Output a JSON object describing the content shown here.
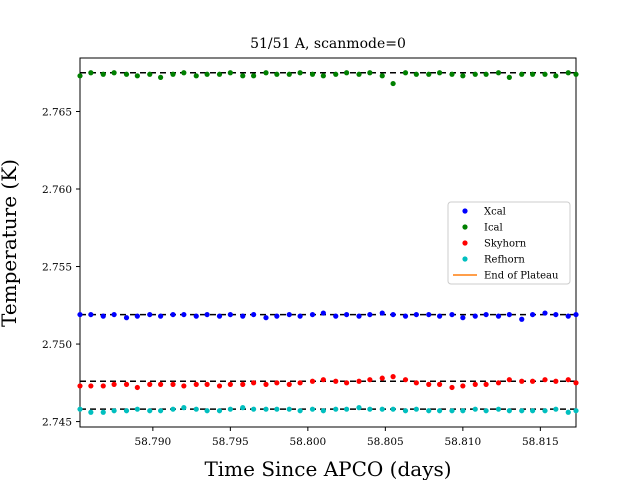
{
  "chart_data": {
    "type": "scatter",
    "title": "51/51 A, scanmode=0",
    "xlabel": "Time Since APCO (days)",
    "ylabel": "Temperature (K)",
    "xlim": [
      58.7853,
      58.8173
    ],
    "ylim": [
      2.74465,
      2.76845
    ],
    "x_ticks": [
      58.79,
      58.795,
      58.8,
      58.805,
      58.81,
      58.815
    ],
    "x_tick_labels": [
      "58.790",
      "58.795",
      "58.800",
      "58.805",
      "58.810",
      "58.815"
    ],
    "y_ticks": [
      2.745,
      2.75,
      2.755,
      2.76,
      2.765
    ],
    "y_tick_labels": [
      "2.745",
      "2.750",
      "2.755",
      "2.760",
      "2.765"
    ],
    "grid": false,
    "legend_position": "center-right",
    "x": [
      58.7853,
      58.786,
      58.7868,
      58.7875,
      58.7883,
      58.789,
      58.7898,
      58.7905,
      58.7913,
      58.792,
      58.7928,
      58.7935,
      58.7943,
      58.795,
      58.7958,
      58.7965,
      58.7973,
      58.798,
      58.7988,
      58.7995,
      58.8003,
      58.801,
      58.8018,
      58.8025,
      58.8033,
      58.804,
      58.8048,
      58.8055,
      58.8063,
      58.807,
      58.8078,
      58.8085,
      58.8093,
      58.81,
      58.8108,
      58.8115,
      58.8123,
      58.813,
      58.8138,
      58.8145,
      58.8153,
      58.816,
      58.8168,
      58.8173
    ],
    "series": [
      {
        "name": "Xcal",
        "color": "#0000ff",
        "plateau": 2.7519,
        "values": [
          2.7519,
          2.7519,
          2.7518,
          2.7519,
          2.7517,
          2.7518,
          2.7519,
          2.7518,
          2.7519,
          2.7519,
          2.7518,
          2.7519,
          2.7518,
          2.7519,
          2.7518,
          2.7519,
          2.7517,
          2.7518,
          2.7519,
          2.7518,
          2.7519,
          2.752,
          2.7518,
          2.7519,
          2.7518,
          2.7519,
          2.752,
          2.7519,
          2.7518,
          2.7519,
          2.7519,
          2.7518,
          2.7519,
          2.7517,
          2.7518,
          2.7519,
          2.7518,
          2.7519,
          2.7516,
          2.7519,
          2.752,
          2.7519,
          2.7518,
          2.7519
        ]
      },
      {
        "name": "Ical",
        "color": "#008000",
        "plateau": 2.7675,
        "values": [
          2.7673,
          2.7675,
          2.7674,
          2.7675,
          2.7674,
          2.7673,
          2.7674,
          2.7672,
          2.7674,
          2.7675,
          2.7673,
          2.7674,
          2.7674,
          2.7675,
          2.7673,
          2.7673,
          2.7675,
          2.7674,
          2.7674,
          2.7675,
          2.7674,
          2.7673,
          2.7674,
          2.7675,
          2.7674,
          2.7675,
          2.7673,
          2.7668,
          2.7675,
          2.7674,
          2.7674,
          2.7675,
          2.7674,
          2.7673,
          2.7674,
          2.7674,
          2.7675,
          2.7672,
          2.7674,
          2.7674,
          2.7674,
          2.7673,
          2.7675,
          2.7674
        ]
      },
      {
        "name": "Skyhorn",
        "color": "#ff0000",
        "plateau": 2.7476,
        "values": [
          2.7473,
          2.7473,
          2.7473,
          2.7474,
          2.7474,
          2.7472,
          2.7474,
          2.7474,
          2.7474,
          2.7473,
          2.7474,
          2.7474,
          2.7473,
          2.7474,
          2.7474,
          2.7475,
          2.7474,
          2.7475,
          2.7474,
          2.7475,
          2.7476,
          2.7477,
          2.7476,
          2.7475,
          2.7476,
          2.7477,
          2.7478,
          2.7479,
          2.7477,
          2.7475,
          2.7474,
          2.7474,
          2.7472,
          2.7473,
          2.7474,
          2.7474,
          2.7475,
          2.7477,
          2.7476,
          2.7476,
          2.7477,
          2.7476,
          2.7477,
          2.7475
        ]
      },
      {
        "name": "Refhorn",
        "color": "#00bfbf",
        "plateau": 2.7458,
        "values": [
          2.7458,
          2.7456,
          2.7456,
          2.7457,
          2.7457,
          2.7458,
          2.7457,
          2.7457,
          2.7458,
          2.7459,
          2.7458,
          2.7457,
          2.7457,
          2.7458,
          2.7459,
          2.7458,
          2.7458,
          2.7458,
          2.7458,
          2.7457,
          2.7458,
          2.7457,
          2.7458,
          2.7458,
          2.7459,
          2.7458,
          2.7458,
          2.7458,
          2.7457,
          2.7458,
          2.7457,
          2.7457,
          2.7457,
          2.7457,
          2.7458,
          2.7457,
          2.7458,
          2.7457,
          2.7457,
          2.7457,
          2.7457,
          2.7458,
          2.7456,
          2.7457
        ]
      }
    ],
    "legend": [
      {
        "label": "Xcal",
        "kind": "marker",
        "color": "#0000ff"
      },
      {
        "label": "Ical",
        "kind": "marker",
        "color": "#008000"
      },
      {
        "label": "Skyhorn",
        "kind": "marker",
        "color": "#ff0000"
      },
      {
        "label": "Refhorn",
        "kind": "marker",
        "color": "#00bfbf"
      },
      {
        "label": "End of Plateau",
        "kind": "line",
        "color": "#ff7f0e"
      }
    ]
  }
}
